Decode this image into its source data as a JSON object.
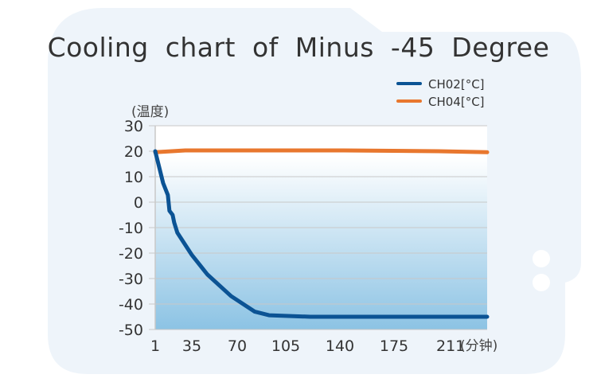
{
  "chart_data": {
    "type": "line",
    "title": "Cooling chart of Minus -45 Degree",
    "ylabel": "(温度)",
    "xlabel": "(分钟)",
    "ylim": [
      -50,
      30
    ],
    "xlim": [
      1,
      211
    ],
    "yticks": [
      30,
      20,
      10,
      0,
      -10,
      -20,
      -30,
      -40,
      -50
    ],
    "xticks": [
      "1",
      "35",
      "70",
      "105",
      "140",
      "175",
      "211"
    ],
    "grid": true,
    "legend_position": "top-right",
    "series": [
      {
        "name": "CH02[°C]",
        "color": "#0b5394",
        "x": [
          1,
          6,
          9,
          10,
          12,
          13,
          15,
          24,
          34,
          49,
          64,
          73,
          99,
          211
        ],
        "y": [
          20,
          7.5,
          2.8,
          -3.4,
          -5,
          -8,
          -12,
          -20.6,
          -28.4,
          -36.9,
          -43,
          -44.4,
          -45,
          -45
        ]
      },
      {
        "name": "CH04[°C]",
        "color": "#e8772e",
        "x": [
          1,
          20,
          60,
          120,
          180,
          211
        ],
        "y": [
          19.6,
          20.3,
          20.3,
          20.3,
          20.0,
          19.6
        ]
      }
    ]
  }
}
